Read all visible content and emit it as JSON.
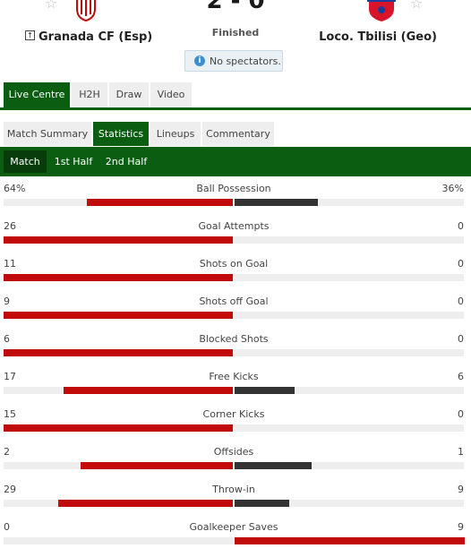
{
  "match": {
    "score": "2 - 0",
    "status": "Finished",
    "notice": "No spectators.",
    "home_team": "Granada CF (Esp)",
    "away_team": "Loco. Tbilisi (Geo)"
  },
  "main_tabs": [
    {
      "label": "Live Centre",
      "active": true
    },
    {
      "label": "H2H",
      "active": false
    },
    {
      "label": "Draw",
      "active": false
    },
    {
      "label": "Video",
      "active": false
    }
  ],
  "sub_tabs": [
    {
      "label": "Match Summary",
      "active": false
    },
    {
      "label": "Statistics",
      "active": true
    },
    {
      "label": "Lineups",
      "active": false
    },
    {
      "label": "Commentary",
      "active": false
    }
  ],
  "period_tabs": [
    {
      "label": "Match",
      "active": true
    },
    {
      "label": "1st Half",
      "active": false
    },
    {
      "label": "2nd Half",
      "active": false
    }
  ],
  "colors": {
    "brand_green": "#0b5d12",
    "home_bar": "#c10b0b",
    "away_bar": "#333333"
  },
  "stats": [
    {
      "name": "Ball Possession",
      "home": "64%",
      "away": "36%",
      "home_val": 64,
      "away_val": 36
    },
    {
      "name": "Goal Attempts",
      "home": "26",
      "away": "0",
      "home_val": 26,
      "away_val": 0
    },
    {
      "name": "Shots on Goal",
      "home": "11",
      "away": "0",
      "home_val": 11,
      "away_val": 0
    },
    {
      "name": "Shots off Goal",
      "home": "9",
      "away": "0",
      "home_val": 9,
      "away_val": 0
    },
    {
      "name": "Blocked Shots",
      "home": "6",
      "away": "0",
      "home_val": 6,
      "away_val": 0
    },
    {
      "name": "Free Kicks",
      "home": "17",
      "away": "6",
      "home_val": 17,
      "away_val": 6
    },
    {
      "name": "Corner Kicks",
      "home": "15",
      "away": "0",
      "home_val": 15,
      "away_val": 0
    },
    {
      "name": "Offsides",
      "home": "2",
      "away": "1",
      "home_val": 2,
      "away_val": 1
    },
    {
      "name": "Throw-in",
      "home": "29",
      "away": "9",
      "home_val": 29,
      "away_val": 9
    },
    {
      "name": "Goalkeeper Saves",
      "home": "0",
      "away": "9",
      "home_val": 0,
      "away_val": 9
    }
  ]
}
